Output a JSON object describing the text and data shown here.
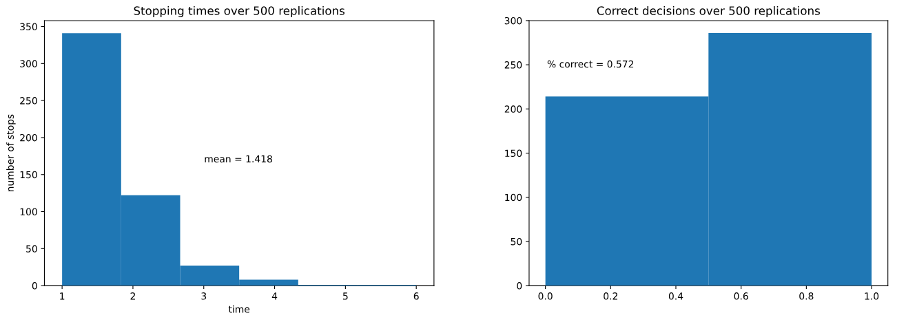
{
  "chart_data": [
    {
      "type": "histogram",
      "title": "Stopping times over 500 replications",
      "xlabel": "time",
      "ylabel": "number of stops",
      "bins": [
        1,
        1.8333,
        2.6667,
        3.5,
        4.3333,
        5.1667,
        6
      ],
      "values": [
        341,
        122,
        27,
        8,
        1,
        1
      ],
      "color": "#1f77b4",
      "xlim": [
        0.75,
        6.25
      ],
      "ylim": [
        0,
        358
      ],
      "xticks": [
        1,
        2,
        3,
        4,
        5,
        6
      ],
      "yticks": [
        0,
        50,
        100,
        150,
        200,
        250,
        300,
        350
      ],
      "annotations": [
        "mean = 1.418"
      ]
    },
    {
      "type": "histogram",
      "title": "Correct decisions over 500 replications",
      "bins": [
        0,
        0.5,
        1
      ],
      "values": [
        214,
        286
      ],
      "color": "#1f77b4",
      "xlim": [
        -0.05,
        1.05
      ],
      "ylim": [
        0,
        300
      ],
      "xticks": [
        {
          "value": 0,
          "label": "0.0"
        },
        {
          "value": 0.2,
          "label": "0.2"
        },
        {
          "value": 0.4,
          "label": "0.4"
        },
        {
          "value": 0.6,
          "label": "0.6"
        },
        {
          "value": 0.8,
          "label": "0.8"
        },
        {
          "value": 1,
          "label": "1.0"
        }
      ],
      "yticks": [
        0,
        50,
        100,
        150,
        200,
        250,
        300
      ],
      "annotations": [
        "% correct = 0.572"
      ]
    }
  ]
}
